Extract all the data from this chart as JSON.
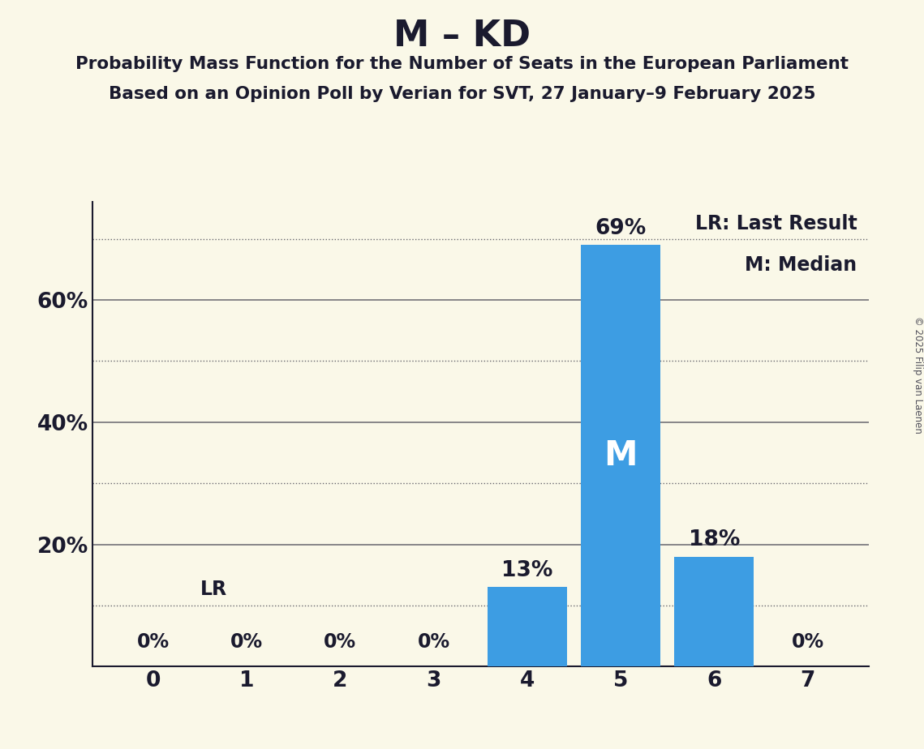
{
  "title": "M – KD",
  "subtitle1": "Probability Mass Function for the Number of Seats in the European Parliament",
  "subtitle2": "Based on an Opinion Poll by Verian for SVT, 27 January–9 February 2025",
  "copyright": "© 2025 Filip van Laenen",
  "categories": [
    0,
    1,
    2,
    3,
    4,
    5,
    6,
    7
  ],
  "values": [
    0,
    0,
    0,
    0,
    13,
    69,
    18,
    0
  ],
  "bar_color": "#3d9de3",
  "background_color": "#faf8e8",
  "label_color": "#1a1a2e",
  "median_seat": 5,
  "lr_value": 10,
  "legend_lr": "LR: Last Result",
  "legend_m": "M: Median",
  "ylim_max": 76,
  "ytick_labels_pos": [
    20,
    40,
    60
  ],
  "dotted_lines": [
    10,
    30,
    50,
    70
  ],
  "solid_lines": [
    20,
    40,
    60
  ]
}
